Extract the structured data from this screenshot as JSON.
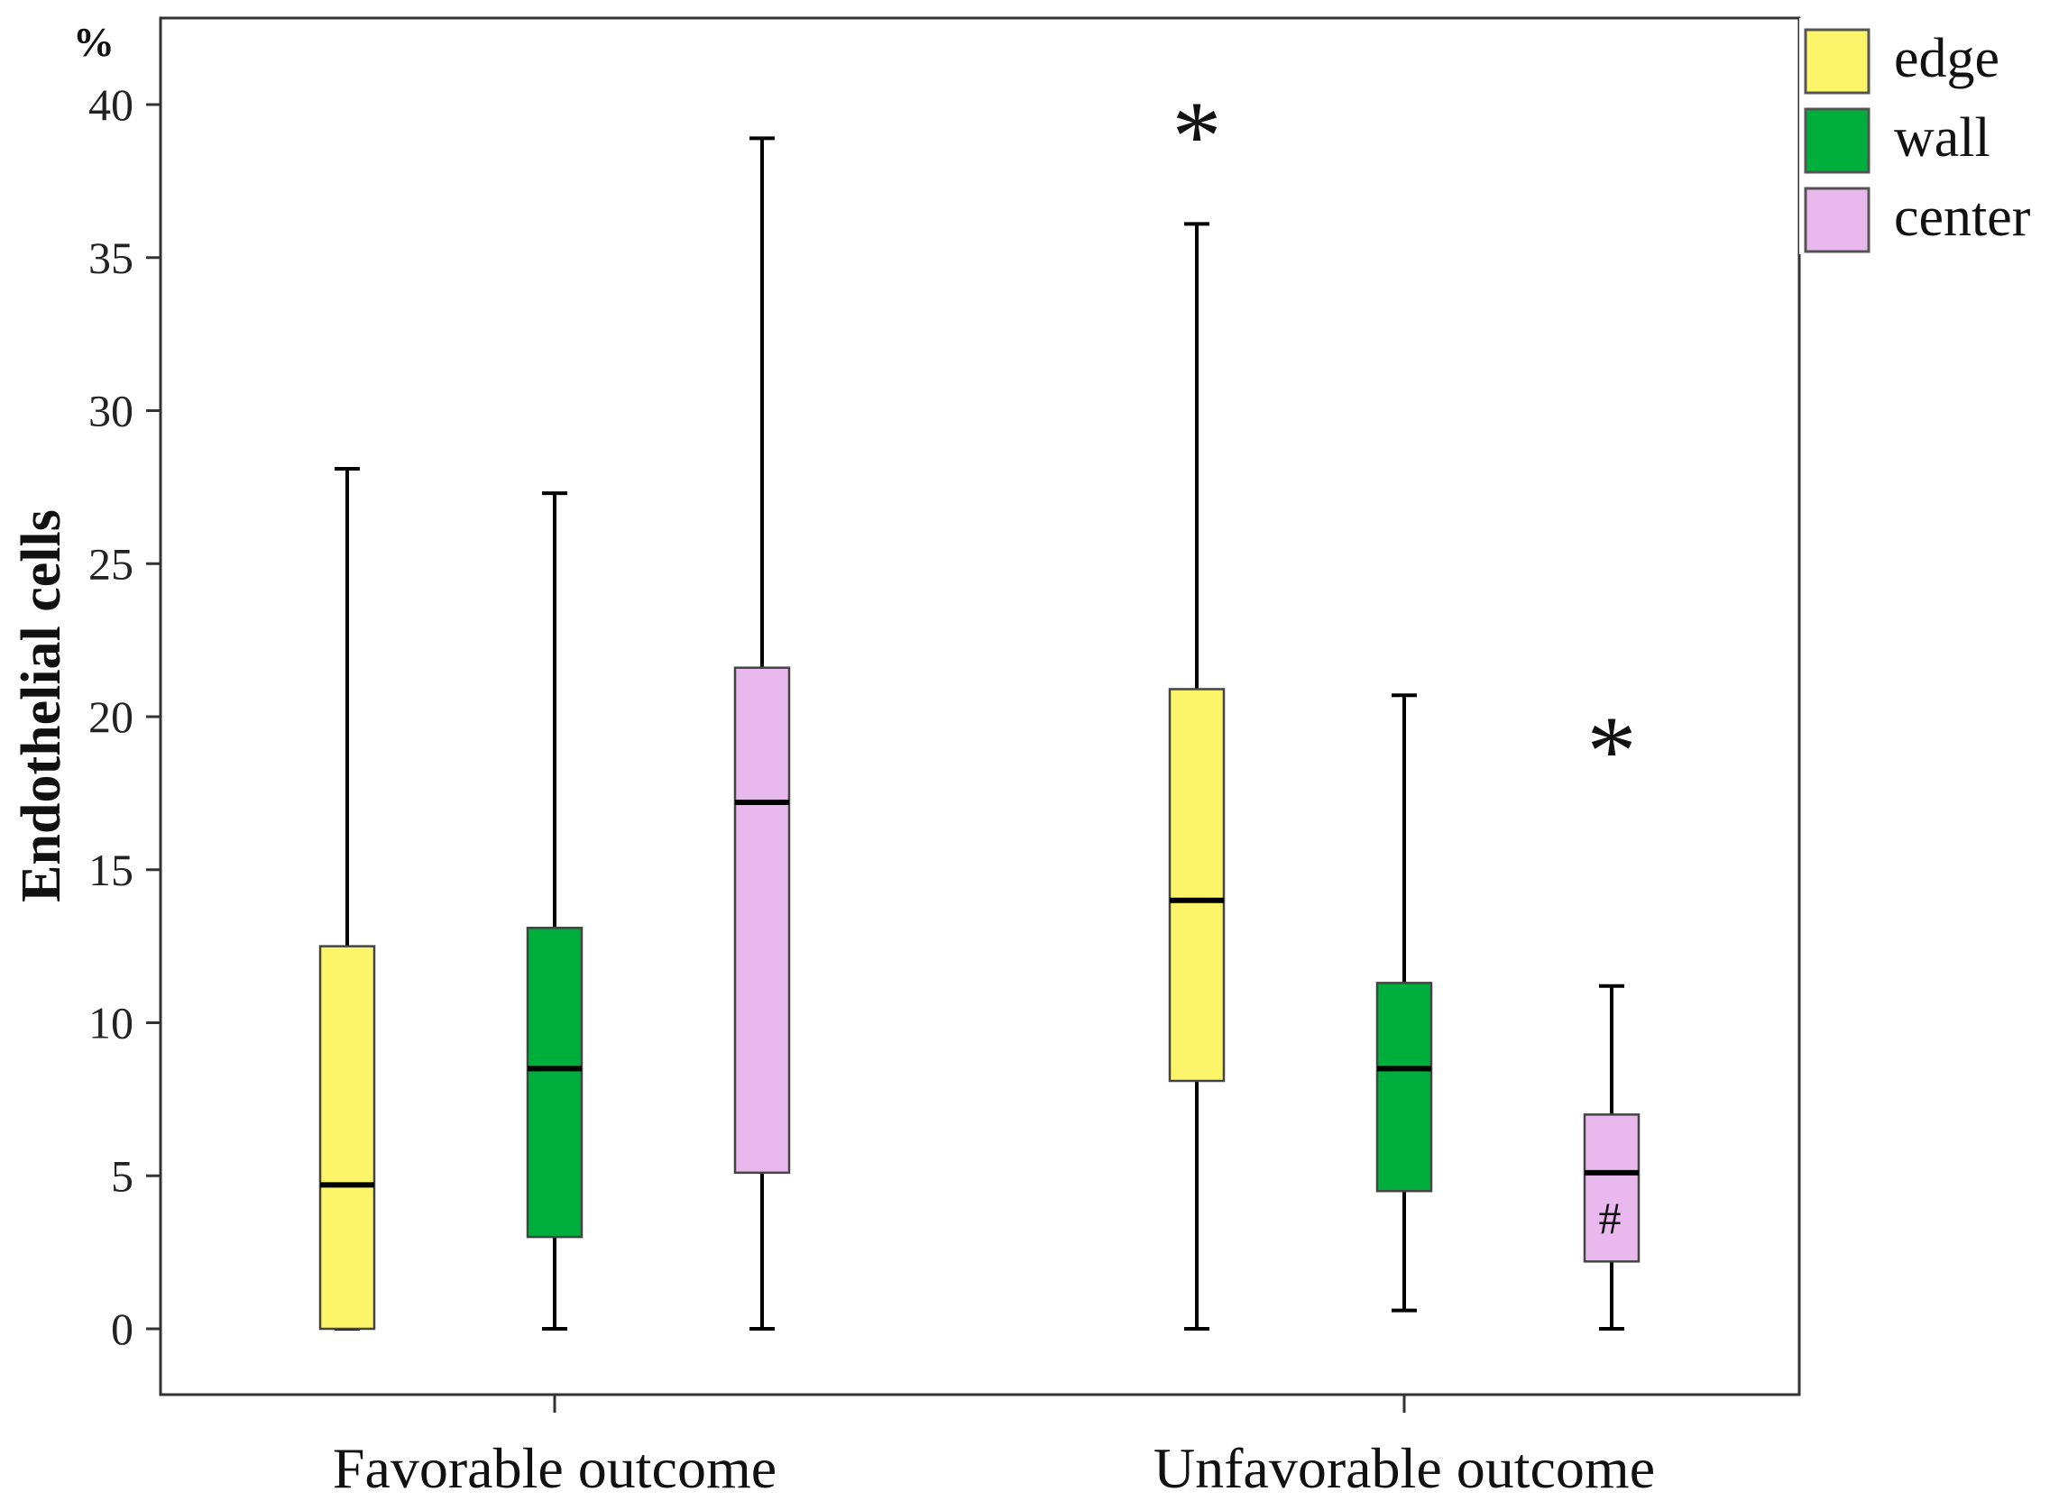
{
  "chart_data": {
    "type": "boxplot",
    "ylabel": "Endothelial cells",
    "y_unit": "%",
    "ylim": [
      -2.5,
      42.5
    ],
    "yticks": [
      0,
      5,
      10,
      15,
      20,
      25,
      30,
      35,
      40
    ],
    "categories": [
      "Favorable outcome",
      "Unfavorable outcome"
    ],
    "series": [
      {
        "name": "edge",
        "color": "#fcf56a"
      },
      {
        "name": "wall",
        "color": "#00ae3c"
      },
      {
        "name": "center",
        "color": "#e9b8ed"
      }
    ],
    "legend_position": "right-top",
    "boxes": [
      {
        "category": "Favorable outcome",
        "series": "edge",
        "min": 0,
        "q1": 0,
        "median": 4.7,
        "q3": 12.5,
        "max": 28.1
      },
      {
        "category": "Favorable outcome",
        "series": "wall",
        "min": 0,
        "q1": 3.0,
        "median": 8.5,
        "q3": 13.1,
        "max": 27.3
      },
      {
        "category": "Favorable outcome",
        "series": "center",
        "min": 0,
        "q1": 5.1,
        "median": 17.2,
        "q3": 21.6,
        "max": 38.9
      },
      {
        "category": "Unfavorable outcome",
        "series": "edge",
        "min": 0,
        "q1": 8.1,
        "median": 14.0,
        "q3": 20.9,
        "max": 36.1,
        "outlier_marker": "*",
        "outlier_value": 39.3
      },
      {
        "category": "Unfavorable outcome",
        "series": "wall",
        "min": 0.6,
        "q1": 4.5,
        "median": 8.5,
        "q3": 11.3,
        "max": 20.7
      },
      {
        "category": "Unfavorable outcome",
        "series": "center",
        "min": 0,
        "q1": 2.2,
        "median": 5.1,
        "q3": 7.0,
        "max": 11.2,
        "outlier_marker": "*",
        "outlier_value": 19.2,
        "annotation": "#"
      }
    ]
  }
}
